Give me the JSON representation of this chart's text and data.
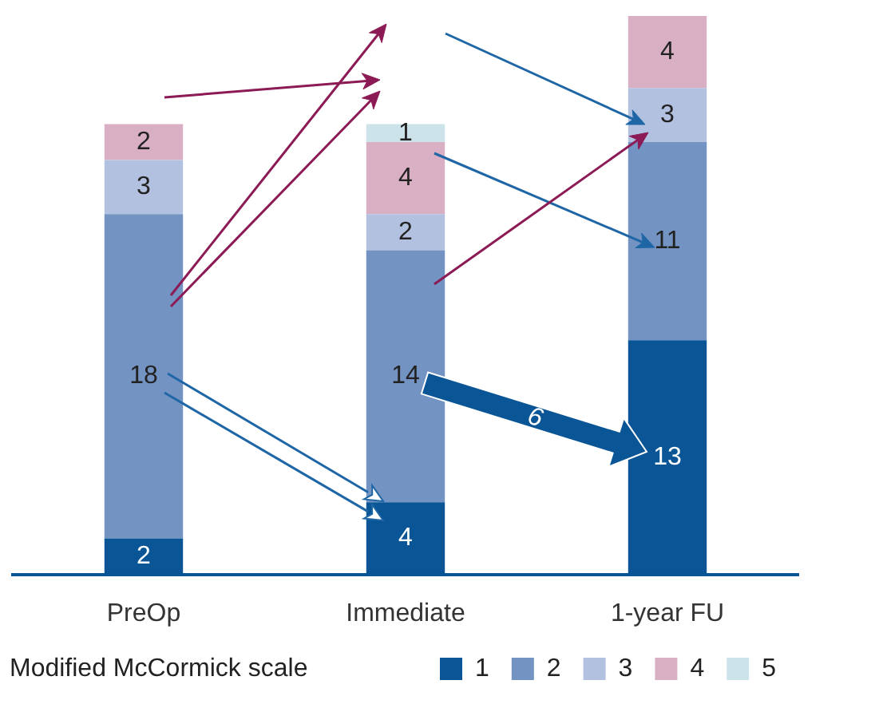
{
  "chart_data": {
    "type": "bar",
    "stacked": true,
    "data_labels": true,
    "legend": "bottom right",
    "legend_title": "Modified McCormick scale",
    "categories": [
      "PreOp",
      "Immediate",
      "1-year FU"
    ],
    "series": [
      {
        "name": "1",
        "color": "#0a5596",
        "values": [
          2,
          4,
          13
        ]
      },
      {
        "name": "2",
        "color": "#7393c3",
        "values": [
          18,
          14,
          11
        ]
      },
      {
        "name": "3",
        "color": "#b3c1e0",
        "values": [
          3,
          2,
          3
        ]
      },
      {
        "name": "4",
        "color": "#d8afc3",
        "values": [
          2,
          4,
          4
        ]
      },
      {
        "name": "5",
        "color": "#cde3ea",
        "values": [
          null,
          1,
          null
        ]
      }
    ],
    "annotations": [
      "6"
    ]
  }
}
